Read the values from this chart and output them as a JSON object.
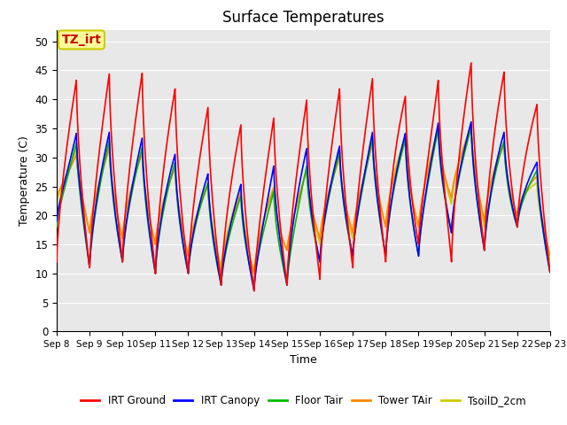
{
  "title": "Surface Temperatures",
  "xlabel": "Time",
  "ylabel": "Temperature (C)",
  "annotation_text": "TZ_irt",
  "annotation_facecolor": "#ffff99",
  "annotation_edgecolor": "#cccc00",
  "annotation_textcolor": "#cc0000",
  "background_color": "#e8e8e8",
  "ylim": [
    0,
    52
  ],
  "yticks": [
    0,
    5,
    10,
    15,
    20,
    25,
    30,
    35,
    40,
    45,
    50
  ],
  "x_labels": [
    "Sep 8",
    "Sep 9",
    "Sep 10",
    "Sep 11",
    "Sep 12",
    "Sep 13",
    "Sep 14",
    "Sep 15",
    "Sep 16",
    "Sep 17",
    "Sep 18",
    "Sep 19",
    "Sep 20",
    "Sep 21",
    "Sep 22",
    "Sep 23"
  ],
  "legend_entries": [
    "IRT Ground",
    "IRT Canopy",
    "Floor Tair",
    "Tower TAir",
    "TsoilD_2cm"
  ],
  "legend_colors": [
    "#ff0000",
    "#0000ff",
    "#00bb00",
    "#ff8800",
    "#cccc00"
  ],
  "line_colors": [
    "#ff0000",
    "#0000ff",
    "#00bb00",
    "#ff8800",
    "#cccc00"
  ],
  "line_widths": [
    1.2,
    1.2,
    1.2,
    1.2,
    1.2
  ],
  "n_days": 15,
  "n_points_per_day": 144,
  "irt_ground_peaks": [
    44,
    43,
    45.5,
    44,
    40.5,
    37.5,
    34.5,
    38.5,
    41,
    42.5,
    44.5,
    38,
    47,
    46,
    44,
    36
  ],
  "irt_ground_mins": [
    12,
    11,
    12,
    10,
    10,
    8,
    7,
    8,
    9,
    11,
    12,
    15,
    12,
    14,
    18,
    10
  ],
  "irt_canopy_peaks": [
    33,
    35,
    34,
    33,
    29,
    26,
    25,
    31,
    32,
    32,
    36,
    33,
    38,
    35,
    34,
    26
  ],
  "irt_canopy_mins": [
    19,
    11,
    12,
    10,
    10,
    8,
    7,
    8,
    12,
    13,
    13,
    13,
    17,
    14,
    18,
    10
  ],
  "floor_tair_peaks": [
    32,
    33,
    33,
    31,
    28,
    24,
    23,
    25,
    31,
    31,
    35,
    32,
    37,
    34,
    32,
    25
  ],
  "floor_tair_mins": [
    18,
    11,
    12,
    10,
    10,
    8,
    8,
    8,
    12,
    13,
    13,
    13,
    17,
    14,
    18,
    10
  ],
  "tower_tair_peaks": [
    30,
    31,
    32,
    30,
    27,
    24,
    24,
    25,
    30,
    30,
    34,
    32,
    37,
    34,
    31,
    24
  ],
  "tower_tair_mins": [
    23,
    17,
    16,
    15,
    13,
    10,
    10,
    14,
    16,
    17,
    18,
    18,
    23,
    19,
    20,
    13
  ],
  "tsoil_peaks": [
    31,
    32,
    32,
    30,
    27,
    25,
    25,
    25,
    30,
    30,
    35,
    33,
    37,
    35,
    31,
    22
  ],
  "tsoil_mins": [
    22,
    17,
    16,
    15,
    13,
    11,
    10,
    14,
    15,
    16,
    18,
    18,
    22,
    18,
    20,
    12
  ]
}
